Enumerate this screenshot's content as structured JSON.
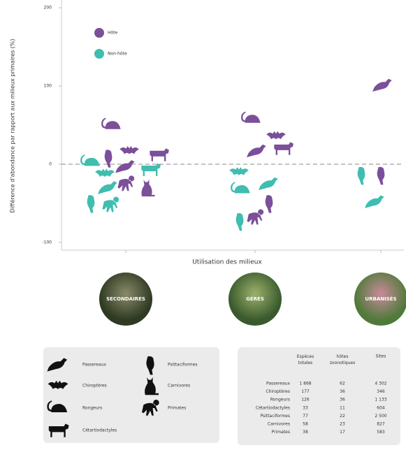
{
  "chart_data": {
    "type": "scatter",
    "y_label": "Différence d'abondance par rapport aux milieux primaires (%)",
    "x_label": "Utilisation des milieux",
    "categories": [
      "SECONDAIRES",
      "GÉRÉS",
      "URBANISÉS"
    ],
    "ylim": [
      -110,
      210
    ],
    "yticks": [
      -100,
      0,
      100,
      200
    ],
    "taxa": [
      "Passereaux",
      "Chiroptères",
      "Rongeurs",
      "Cétartiodactyles",
      "Psittaciformes",
      "Carnivores",
      "Primates"
    ],
    "series": [
      {
        "name": "Hôte",
        "color": "#7b4f9a",
        "points": [
          {
            "x": "SECONDAIRES",
            "y": 50,
            "taxon": "Rongeurs"
          },
          {
            "x": "SECONDAIRES",
            "y": 17,
            "taxon": "Chiroptères"
          },
          {
            "x": "SECONDAIRES",
            "y": 12,
            "taxon": "Cétartiodactyles"
          },
          {
            "x": "SECONDAIRES",
            "y": 8,
            "taxon": "Psittaciformes"
          },
          {
            "x": "SECONDAIRES",
            "y": -3,
            "taxon": "Passereaux"
          },
          {
            "x": "SECONDAIRES",
            "y": -25,
            "taxon": "Primates"
          },
          {
            "x": "SECONDAIRES",
            "y": -30,
            "taxon": "Carnivores"
          },
          {
            "x": "GÉRÉS",
            "y": 58,
            "taxon": "Rongeurs"
          },
          {
            "x": "GÉRÉS",
            "y": 36,
            "taxon": "Chiroptères"
          },
          {
            "x": "GÉRÉS",
            "y": 17,
            "taxon": "Passereaux"
          },
          {
            "x": "GÉRÉS",
            "y": 20,
            "taxon": "Cétartiodactyles"
          },
          {
            "x": "GÉRÉS",
            "y": -50,
            "taxon": "Psittaciformes"
          },
          {
            "x": "GÉRÉS",
            "y": -68,
            "taxon": "Primates"
          },
          {
            "x": "URBANISÉS",
            "y": 101,
            "taxon": "Passereaux"
          },
          {
            "x": "URBANISÉS",
            "y": -14,
            "taxon": "Psittaciformes"
          }
        ]
      },
      {
        "name": "Non-hôte",
        "color": "#3fbdb0",
        "points": [
          {
            "x": "SECONDAIRES",
            "y": 3,
            "taxon": "Rongeurs"
          },
          {
            "x": "SECONDAIRES",
            "y": -7,
            "taxon": "Cétartiodactyles"
          },
          {
            "x": "SECONDAIRES",
            "y": -12,
            "taxon": "Chiroptères"
          },
          {
            "x": "SECONDAIRES",
            "y": -30,
            "taxon": "Passereaux"
          },
          {
            "x": "SECONDAIRES",
            "y": -50,
            "taxon": "Psittaciformes"
          },
          {
            "x": "SECONDAIRES",
            "y": -52,
            "taxon": "Primates"
          },
          {
            "x": "GÉRÉS",
            "y": -10,
            "taxon": "Chiroptères"
          },
          {
            "x": "GÉRÉS",
            "y": -32,
            "taxon": "Rongeurs"
          },
          {
            "x": "GÉRÉS",
            "y": -25,
            "taxon": "Passereaux"
          },
          {
            "x": "GÉRÉS",
            "y": -73,
            "taxon": "Psittaciformes"
          },
          {
            "x": "URBANISÉS",
            "y": -14,
            "taxon": "Psittaciformes"
          },
          {
            "x": "URBANISÉS",
            "y": -48,
            "taxon": "Passereaux"
          }
        ]
      }
    ]
  },
  "table": {
    "headers": [
      "Espèces totales",
      "hôtes zoonotiques",
      "Sites"
    ],
    "rows": [
      [
        "Passereaux",
        "1 868",
        "62",
        "4 302"
      ],
      [
        "Chiroptères",
        "177",
        "36",
        "346"
      ],
      [
        "Rongeurs",
        "126",
        "36",
        "1 133"
      ],
      [
        "Cétartiodactyles",
        "33",
        "11",
        "604"
      ],
      [
        "Psittaciformes",
        "77",
        "22",
        "2 500"
      ],
      [
        "Carnivores",
        "58",
        "23",
        "827"
      ],
      [
        "Primates",
        "38",
        "17",
        "583"
      ]
    ]
  }
}
